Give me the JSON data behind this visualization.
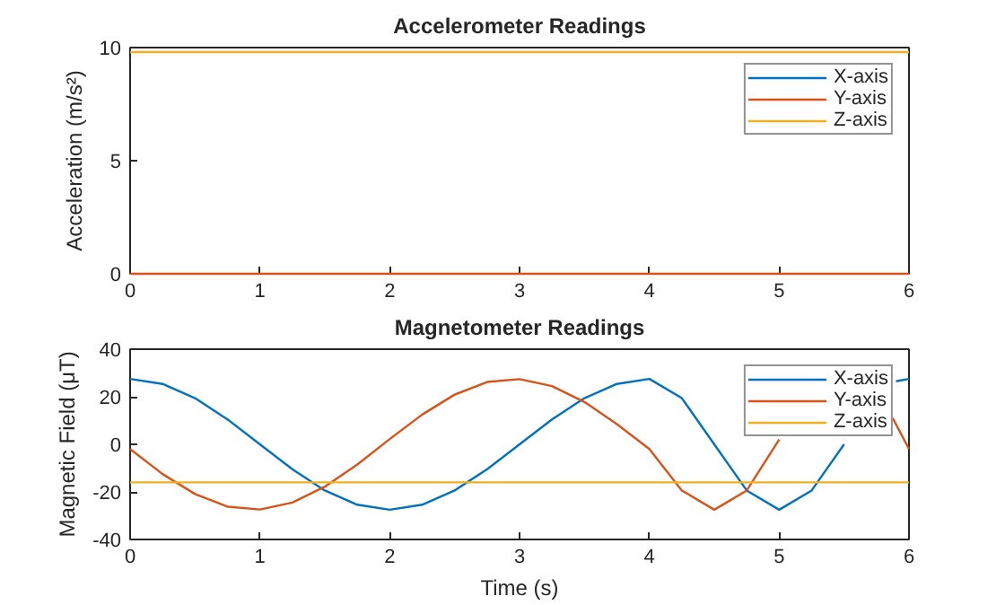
{
  "chart_data": [
    {
      "type": "line",
      "title": "Accelerometer Readings",
      "ylabel": "Acceleration (m/s²)",
      "xlim": [
        0,
        6
      ],
      "ylim": [
        0,
        10
      ],
      "xticks": [
        0,
        1,
        2,
        3,
        4,
        5,
        6
      ],
      "yticks": [
        0,
        5,
        10
      ],
      "grid": false,
      "legend": "top right",
      "series": [
        {
          "name": "X-axis",
          "color": "#0072bd",
          "values": [
            null,
            null
          ]
        },
        {
          "name": "Y-axis",
          "color": "#d95319",
          "x": [
            0,
            6
          ],
          "values": [
            0,
            0
          ]
        },
        {
          "name": "Z-axis",
          "color": "#edb120",
          "x": [
            0,
            6
          ],
          "values": [
            9.8,
            9.8
          ]
        }
      ]
    },
    {
      "type": "line",
      "title": "Magnetometer Readings",
      "xlabel": "Time (s)",
      "ylabel": "Magnetic Field (μT)",
      "xlim": [
        0,
        6
      ],
      "ylim": [
        -40,
        40
      ],
      "xticks": [
        0,
        1,
        2,
        3,
        4,
        5,
        6
      ],
      "yticks": [
        -40,
        -20,
        0,
        20,
        40
      ],
      "grid": false,
      "legend": "top right",
      "series": [
        {
          "name": "X-axis",
          "color": "#0072bd",
          "x": [
            0,
            0.25,
            0.5,
            0.75,
            1,
            1.25,
            1.5,
            1.75,
            2,
            2.25,
            2.5,
            2.75,
            3,
            3.25,
            3.5,
            3.75,
            4,
            4.25,
            4.5,
            4.75,
            5,
            5.25,
            5.5,
            5.75,
            5.9,
            6
          ],
          "values": [
            27.5,
            25.4,
            19.4,
            10.5,
            0,
            -10.5,
            -19.4,
            -25.4,
            -27.5,
            -25.4,
            -19.4,
            -10.5,
            0,
            10.5,
            19.4,
            25.4,
            27.5,
            19.4,
            0,
            -19.4,
            -27.5,
            -19.4,
            0,
            null,
            26.5,
            27.5
          ]
        },
        {
          "name": "Y-axis",
          "color": "#d95319",
          "x": [
            0,
            0.25,
            0.5,
            0.75,
            1,
            1.25,
            1.5,
            1.75,
            2,
            2.25,
            2.5,
            2.75,
            3,
            3.25,
            3.5,
            3.75,
            4,
            4.25,
            4.5,
            4.75,
            5,
            5.25,
            5.5,
            5.75,
            5.875,
            6
          ],
          "values": [
            -2,
            -12.5,
            -20.9,
            -26.2,
            -27.4,
            -24.5,
            -17.8,
            -8.5,
            2.2,
            12.5,
            20.9,
            26.2,
            27.4,
            24.5,
            17.8,
            8.5,
            -2,
            -19.4,
            -27.5,
            -19.4,
            2,
            null,
            null,
            null,
            11,
            -2
          ]
        },
        {
          "name": "Z-axis",
          "color": "#edb120",
          "x": [
            0,
            6
          ],
          "values": [
            -16,
            -16
          ]
        }
      ]
    }
  ]
}
